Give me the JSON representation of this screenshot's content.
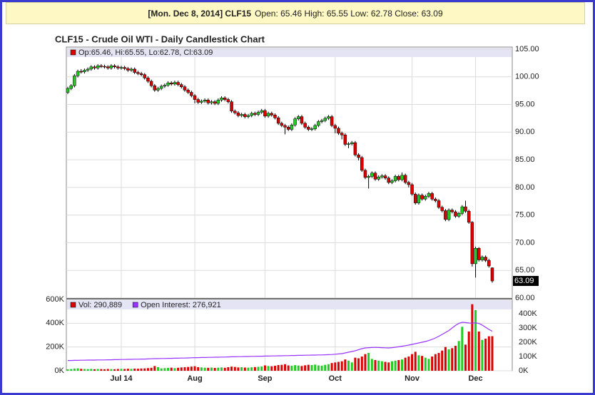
{
  "header": {
    "bold": "[Mon. Dec 8, 2014] CLF15",
    "text": "Open: 65.46 High: 65.55 Low: 62.78 Close: 63.09"
  },
  "chart_data": [
    {
      "type": "candlestick",
      "title": "CLF15 - Crude Oil WTI - Daily Candlestick Chart",
      "legend": "Op:65.46, Hi:65.55, Lo:62.78, Cl:63.09",
      "legend_color": "#dd0000",
      "up_color": "#22cc22",
      "down_color": "#dd0000",
      "grid": true,
      "ylim": [
        60,
        105
      ],
      "yticks": [
        {
          "value": 60,
          "label": "60.00"
        },
        {
          "value": 65,
          "label": "65.00"
        },
        {
          "value": 70,
          "label": "70.00"
        },
        {
          "value": 75,
          "label": "75.00"
        },
        {
          "value": 80,
          "label": "80.00"
        },
        {
          "value": 85,
          "label": "85.00"
        },
        {
          "value": 90,
          "label": "90.00"
        },
        {
          "value": 95,
          "label": "95.00"
        },
        {
          "value": 100,
          "label": "100.00"
        },
        {
          "value": 105,
          "label": "105.00"
        }
      ],
      "open": [
        97.2,
        97.9,
        98.4,
        100.2,
        101.0,
        100.9,
        101.2,
        101.4,
        101.8,
        101.6,
        102.0,
        101.9,
        101.8,
        101.6,
        102.0,
        101.8,
        101.6,
        101.7,
        101.5,
        101.2,
        101.4,
        100.8,
        100.6,
        100.4,
        99.8,
        99.2,
        98.4,
        97.6,
        97.9,
        98.3,
        98.5,
        98.9,
        98.7,
        99.0,
        98.6,
        98.2,
        97.6,
        97.2,
        96.6,
        95.9,
        95.4,
        95.6,
        95.8,
        95.3,
        95.5,
        95.2,
        95.8,
        96.2,
        95.9,
        95.5,
        93.8,
        93.5,
        93.0,
        93.2,
        92.8,
        93.0,
        93.4,
        93.2,
        93.6,
        93.9,
        92.9,
        93.4,
        93.1,
        92.6,
        91.6,
        91.2,
        90.9,
        90.5,
        91.3,
        92.4,
        92.8,
        91.6,
        90.9,
        90.5,
        90.6,
        91.2,
        91.9,
        92.1,
        92.5,
        92.8,
        91.2,
        90.7,
        89.8,
        89.5,
        87.8,
        87.9,
        88.1,
        85.9,
        85.4,
        83.1,
        81.8,
        82.0,
        82.6,
        81.5,
        81.9,
        82.1,
        81.7,
        80.9,
        81.2,
        82.0,
        81.4,
        82.2,
        80.9,
        80.5,
        78.8,
        77.2,
        78.6,
        77.9,
        78.4,
        78.9,
        77.9,
        77.6,
        76.4,
        75.8,
        74.2,
        75.9,
        75.6,
        74.8,
        75.3,
        76.5,
        75.7,
        73.7,
        66.2,
        69.0,
        66.9,
        67.4,
        66.8,
        65.46
      ],
      "high": [
        98.2,
        98.7,
        100.5,
        101.3,
        101.4,
        101.5,
        101.7,
        102.1,
        102.1,
        102.3,
        102.3,
        102.2,
        102.1,
        102.3,
        102.3,
        102.1,
        102.0,
        102.0,
        101.8,
        101.7,
        101.7,
        101.1,
        100.9,
        100.7,
        100.1,
        99.5,
        98.7,
        98.2,
        98.6,
        98.8,
        99.2,
        99.2,
        99.3,
        99.3,
        98.9,
        98.5,
        97.9,
        97.5,
        96.9,
        96.2,
        95.9,
        96.1,
        96.1,
        95.8,
        95.8,
        96.1,
        96.5,
        96.5,
        96.2,
        95.8,
        94.1,
        93.8,
        93.5,
        93.5,
        93.3,
        93.7,
        93.7,
        93.9,
        94.2,
        94.2,
        93.7,
        93.7,
        93.4,
        92.9,
        91.9,
        91.5,
        91.2,
        91.6,
        92.7,
        93.1,
        93.1,
        91.9,
        91.2,
        90.9,
        91.5,
        92.2,
        92.4,
        92.8,
        93.1,
        93.1,
        91.5,
        91.0,
        90.1,
        89.8,
        88.2,
        88.4,
        88.4,
        86.2,
        85.7,
        83.4,
        82.3,
        82.9,
        82.9,
        82.2,
        82.4,
        82.4,
        82.0,
        81.5,
        82.3,
        82.3,
        82.7,
        82.5,
        81.2,
        80.8,
        79.1,
        78.9,
        78.9,
        78.7,
        79.2,
        79.2,
        78.2,
        77.9,
        76.7,
        76.1,
        76.2,
        76.2,
        75.9,
        75.6,
        76.8,
        77.6,
        76.0,
        73.9,
        69.3,
        69.2,
        67.7,
        67.7,
        67.1,
        65.55
      ],
      "low": [
        96.9,
        97.6,
        98.1,
        99.9,
        100.6,
        100.6,
        100.9,
        101.1,
        101.3,
        101.3,
        101.6,
        101.5,
        101.3,
        101.3,
        101.5,
        101.3,
        101.3,
        101.2,
        100.9,
        100.9,
        100.5,
        100.3,
        100.1,
        99.5,
        98.9,
        98.1,
        97.3,
        97.3,
        97.6,
        98.0,
        98.2,
        98.4,
        98.4,
        98.3,
        97.9,
        97.3,
        96.9,
        96.3,
        95.2,
        95.1,
        95.1,
        95.3,
        95.0,
        95.0,
        94.9,
        94.9,
        95.5,
        95.6,
        95.2,
        93.5,
        93.2,
        92.7,
        92.7,
        92.5,
        92.5,
        92.7,
        92.9,
        92.9,
        93.3,
        92.6,
        92.6,
        92.8,
        92.3,
        91.3,
        90.9,
        89.6,
        90.2,
        90.2,
        91.0,
        92.1,
        91.3,
        90.6,
        90.2,
        90.2,
        90.3,
        90.9,
        91.6,
        91.8,
        92.2,
        90.9,
        89.8,
        89.5,
        88.7,
        87.5,
        87.1,
        87.6,
        85.6,
        84.9,
        82.8,
        81.5,
        79.8,
        81.7,
        81.2,
        81.2,
        81.6,
        81.4,
        80.6,
        80.6,
        80.9,
        81.1,
        81.1,
        80.6,
        80.0,
        78.5,
        76.9,
        76.9,
        77.6,
        77.6,
        78.1,
        77.6,
        77.3,
        76.1,
        75.5,
        73.9,
        73.9,
        75.3,
        74.5,
        74.5,
        75.0,
        75.4,
        73.4,
        65.7,
        63.7,
        66.6,
        66.6,
        66.5,
        65.5,
        62.78
      ],
      "close": [
        97.9,
        98.4,
        100.2,
        101.0,
        100.9,
        101.2,
        101.4,
        101.8,
        101.6,
        102.0,
        101.9,
        101.8,
        101.6,
        102.0,
        101.8,
        101.6,
        101.7,
        101.5,
        101.2,
        101.4,
        100.8,
        100.6,
        100.4,
        99.8,
        99.2,
        98.4,
        97.6,
        97.9,
        98.3,
        98.5,
        98.9,
        98.7,
        99.0,
        98.6,
        98.2,
        97.6,
        97.2,
        96.6,
        95.9,
        95.4,
        95.6,
        95.8,
        95.3,
        95.5,
        95.2,
        95.8,
        96.2,
        95.9,
        95.5,
        93.8,
        93.5,
        93.0,
        93.2,
        92.8,
        93.0,
        93.4,
        93.2,
        93.6,
        93.9,
        92.9,
        93.4,
        93.1,
        92.6,
        91.6,
        91.2,
        90.9,
        90.5,
        91.3,
        92.4,
        92.8,
        91.6,
        90.9,
        90.5,
        90.6,
        91.2,
        91.9,
        92.1,
        92.5,
        92.8,
        91.2,
        90.7,
        89.8,
        89.5,
        87.8,
        87.9,
        88.1,
        85.9,
        85.4,
        83.1,
        81.8,
        82.0,
        82.6,
        81.5,
        81.9,
        82.1,
        81.7,
        80.9,
        81.2,
        82.0,
        81.4,
        82.2,
        80.9,
        80.5,
        78.8,
        77.2,
        78.6,
        77.9,
        78.4,
        78.9,
        77.9,
        77.6,
        76.4,
        75.8,
        74.2,
        75.9,
        75.6,
        74.8,
        75.3,
        76.5,
        75.7,
        73.7,
        66.2,
        69.0,
        66.9,
        67.4,
        66.8,
        65.8,
        63.09
      ]
    },
    {
      "type": "bar",
      "grid": true,
      "categories": [
        null,
        null,
        null,
        null,
        null,
        null,
        null,
        null,
        null,
        null,
        null,
        null,
        null,
        null,
        null,
        null,
        "Jul 14",
        null,
        null,
        null,
        null,
        null,
        null,
        null,
        null,
        null,
        null,
        null,
        null,
        null,
        null,
        null,
        null,
        null,
        null,
        null,
        null,
        null,
        "Aug",
        null,
        null,
        null,
        null,
        null,
        null,
        null,
        null,
        null,
        null,
        null,
        null,
        null,
        null,
        null,
        null,
        null,
        null,
        null,
        null,
        "Sep",
        null,
        null,
        null,
        null,
        null,
        null,
        null,
        null,
        null,
        null,
        null,
        null,
        null,
        null,
        null,
        null,
        null,
        null,
        null,
        null,
        "Oct",
        null,
        null,
        null,
        null,
        null,
        null,
        null,
        null,
        null,
        null,
        null,
        null,
        null,
        null,
        null,
        null,
        null,
        null,
        null,
        null,
        null,
        null,
        "Nov",
        null,
        null,
        null,
        null,
        null,
        null,
        null,
        null,
        null,
        null,
        null,
        null,
        null,
        null,
        null,
        null,
        null,
        null,
        "Dec",
        null,
        null,
        null,
        null,
        null
      ],
      "ylim": [
        0,
        600000
      ],
      "yticks": [
        {
          "value": 0,
          "label": "0K"
        },
        {
          "value": 200000,
          "label": "200K"
        },
        {
          "value": 400000,
          "label": "400K"
        },
        {
          "value": 600000,
          "label": "600K"
        }
      ],
      "y2lim": [
        0,
        500000
      ],
      "y2ticks": [
        {
          "value": 0,
          "label": "0K"
        },
        {
          "value": 100000,
          "label": "100K"
        },
        {
          "value": 200000,
          "label": "200K"
        },
        {
          "value": 300000,
          "label": "300K"
        },
        {
          "value": 400000,
          "label": "400K"
        }
      ],
      "series": [
        {
          "name": "Vol: 290,889",
          "color": "#dd0000",
          "values": [
            12000,
            14000,
            18000,
            20000,
            16000,
            15000,
            14000,
            16000,
            13000,
            15000,
            14000,
            13000,
            15000,
            14000,
            13000,
            15000,
            16000,
            15000,
            17000,
            16000,
            18000,
            17000,
            19000,
            20000,
            22000,
            25000,
            40000,
            30000,
            20000,
            22000,
            24000,
            26000,
            22000,
            25000,
            28000,
            30000,
            32000,
            35000,
            38000,
            30000,
            28000,
            26000,
            25000,
            27000,
            24000,
            26000,
            28000,
            25000,
            30000,
            35000,
            32000,
            28000,
            30000,
            27000,
            26000,
            29000,
            31000,
            33000,
            36000,
            45000,
            40000,
            38000,
            42000,
            48000,
            50000,
            55000,
            45000,
            42000,
            47000,
            44000,
            40000,
            46000,
            50000,
            48000,
            52000,
            45000,
            43000,
            50000,
            55000,
            65000,
            70000,
            75000,
            80000,
            95000,
            85000,
            70000,
            110000,
            105000,
            120000,
            140000,
            150000,
            100000,
            90000,
            85000,
            80000,
            75000,
            70000,
            80000,
            85000,
            90000,
            95000,
            110000,
            120000,
            140000,
            160000,
            130000,
            125000,
            110000,
            100000,
            120000,
            140000,
            150000,
            170000,
            200000,
            180000,
            190000,
            210000,
            250000,
            370000,
            220000,
            330000,
            560000,
            510000,
            330000,
            260000,
            270000,
            290000,
            290889
          ]
        },
        {
          "name": "Open Interest: 276,921",
          "color": "#9933ff",
          "axis": "y2",
          "values": [
            72000,
            72000,
            73000,
            73000,
            74000,
            74000,
            75000,
            75000,
            75000,
            76000,
            76000,
            76000,
            77000,
            77000,
            78000,
            78000,
            79000,
            79000,
            80000,
            80000,
            81000,
            81000,
            82000,
            82000,
            83000,
            84000,
            85000,
            85000,
            86000,
            86000,
            87000,
            87000,
            88000,
            88000,
            89000,
            89000,
            90000,
            91000,
            92000,
            92000,
            93000,
            93000,
            94000,
            94000,
            95000,
            95000,
            96000,
            96000,
            97000,
            98000,
            98000,
            99000,
            99000,
            100000,
            100000,
            101000,
            101000,
            102000,
            102000,
            103000,
            103000,
            104000,
            104000,
            105000,
            105000,
            106000,
            106000,
            107000,
            107000,
            108000,
            108000,
            109000,
            109000,
            110000,
            110000,
            111000,
            111000,
            112000,
            113000,
            114000,
            116000,
            118000,
            120000,
            125000,
            130000,
            135000,
            140000,
            148000,
            155000,
            160000,
            162000,
            163000,
            164000,
            163000,
            162000,
            161000,
            160000,
            162000,
            165000,
            168000,
            172000,
            176000,
            180000,
            185000,
            190000,
            195000,
            200000,
            205000,
            212000,
            220000,
            230000,
            242000,
            255000,
            268000,
            282000,
            300000,
            318000,
            332000,
            340000,
            338000,
            335000,
            334000,
            336000,
            332000,
            320000,
            305000,
            290000,
            276921
          ]
        }
      ]
    }
  ]
}
